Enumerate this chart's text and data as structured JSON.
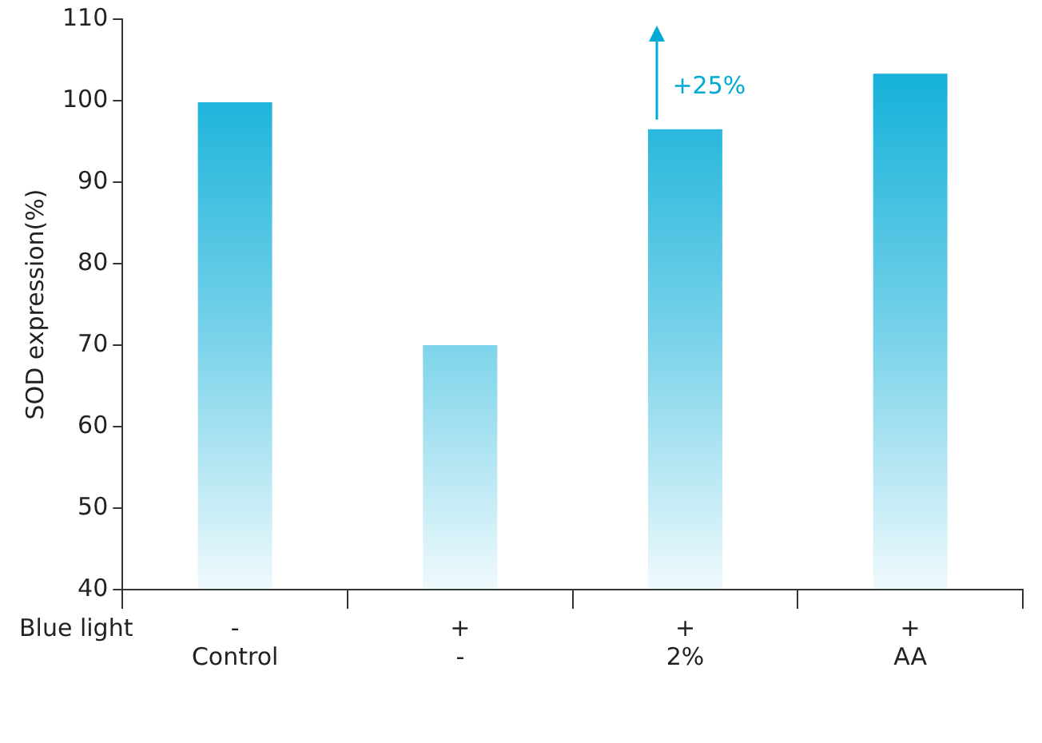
{
  "chart_data": {
    "type": "bar",
    "ylabel": "SOD expression(%)",
    "categories": [
      "-\nControl",
      "+\n-",
      "+\n2%",
      "+\nAA"
    ],
    "values": [
      99.8,
      70,
      96.5,
      103.3
    ],
    "color": "#00aad6",
    "ylim": [
      40,
      110
    ],
    "yticks": [
      40,
      50,
      60,
      70,
      80,
      90,
      100,
      110
    ],
    "grid": false,
    "legend": false,
    "annotations": [
      "Blue light",
      "+25%"
    ]
  }
}
